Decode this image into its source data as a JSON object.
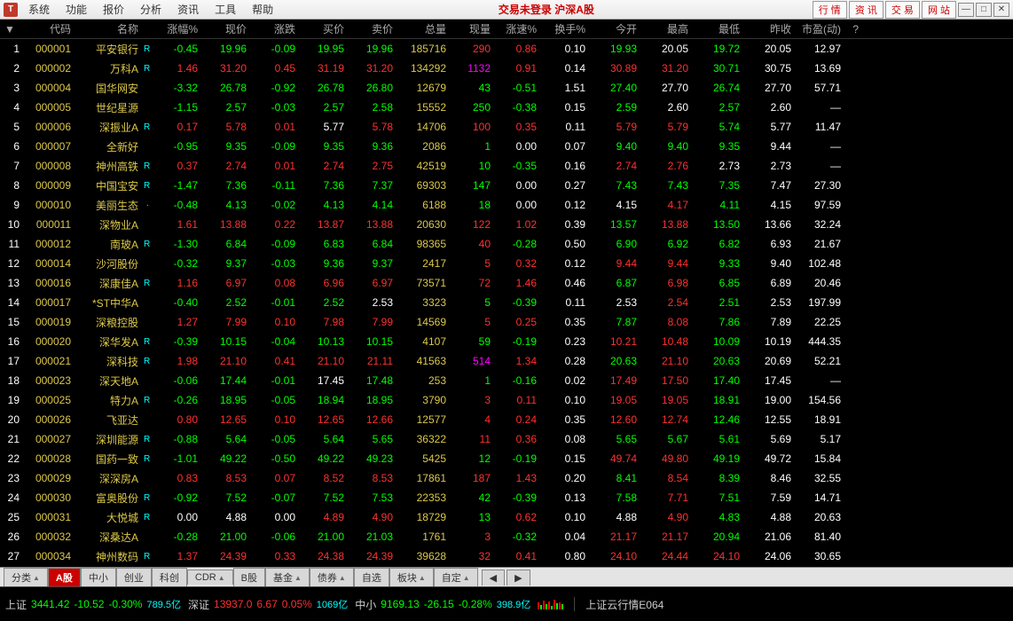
{
  "menubar": [
    "系统",
    "功能",
    "报价",
    "分析",
    "资讯",
    "工具",
    "帮助"
  ],
  "title_status": "交易未登录  沪深A股",
  "nav_buttons": [
    "行 情",
    "资 讯",
    "交 易",
    "网 站"
  ],
  "columns": [
    "",
    "代码",
    "名称",
    "",
    "涨幅%",
    "现价",
    "涨跌",
    "买价",
    "卖价",
    "总量",
    "现量",
    "涨速%",
    "换手%",
    "今开",
    "最高",
    "最低",
    "昨收",
    "市盈(动)",
    "?"
  ],
  "rows": [
    {
      "idx": "1",
      "code": "000001",
      "name": "平安银行",
      "r": "R",
      "pct": "-0.45",
      "price": "19.96",
      "chg": "-0.09",
      "bid": "19.95",
      "ask": "19.96",
      "vol": "185716",
      "cvol": "290",
      "cvolc": "cvol-red",
      "spd": "0.86",
      "turn": "0.10",
      "open": "19.93",
      "high": "20.05",
      "low": "19.72",
      "pclose": "20.05",
      "pe": "12.97",
      "dir": "down",
      "opencolor": "down",
      "highcolor": "flat",
      "lowcolor": "down"
    },
    {
      "idx": "2",
      "code": "000002",
      "name": "万科A",
      "r": "R",
      "pct": "1.46",
      "price": "31.20",
      "chg": "0.45",
      "bid": "31.19",
      "ask": "31.20",
      "vol": "134292",
      "cvol": "1132",
      "cvolc": "cvol-mag",
      "spd": "0.91",
      "turn": "0.14",
      "open": "30.89",
      "high": "31.20",
      "low": "30.71",
      "pclose": "30.75",
      "pe": "13.69",
      "dir": "up",
      "opencolor": "up",
      "highcolor": "up",
      "lowcolor": "down"
    },
    {
      "idx": "3",
      "code": "000004",
      "name": "国华网安",
      "r": "",
      "pct": "-3.32",
      "price": "26.78",
      "chg": "-0.92",
      "bid": "26.78",
      "ask": "26.80",
      "vol": "12679",
      "cvol": "43",
      "cvolc": "cvol-grn",
      "spd": "-0.51",
      "turn": "1.51",
      "open": "27.40",
      "high": "27.70",
      "low": "26.74",
      "pclose": "27.70",
      "pe": "57.71",
      "dir": "down",
      "opencolor": "down",
      "highcolor": "flat",
      "lowcolor": "down"
    },
    {
      "idx": "4",
      "code": "000005",
      "name": "世纪星源",
      "r": "",
      "pct": "-1.15",
      "price": "2.57",
      "chg": "-0.03",
      "bid": "2.57",
      "ask": "2.58",
      "vol": "15552",
      "cvol": "250",
      "cvolc": "cvol-grn",
      "spd": "-0.38",
      "turn": "0.15",
      "open": "2.59",
      "high": "2.60",
      "low": "2.57",
      "pclose": "2.60",
      "pe": "—",
      "dir": "down",
      "opencolor": "down",
      "highcolor": "flat",
      "lowcolor": "down"
    },
    {
      "idx": "5",
      "code": "000006",
      "name": "深振业A",
      "r": "R",
      "pct": "0.17",
      "price": "5.78",
      "chg": "0.01",
      "bid": "5.77",
      "ask": "5.78",
      "vol": "14706",
      "cvol": "100",
      "cvolc": "cvol-red",
      "spd": "0.35",
      "turn": "0.11",
      "open": "5.79",
      "high": "5.79",
      "low": "5.74",
      "pclose": "5.77",
      "pe": "11.47",
      "dir": "up",
      "bidcolor": "flat",
      "opencolor": "up",
      "highcolor": "up",
      "lowcolor": "down"
    },
    {
      "idx": "6",
      "code": "000007",
      "name": "全新好",
      "r": "",
      "pct": "-0.95",
      "price": "9.35",
      "chg": "-0.09",
      "bid": "9.35",
      "ask": "9.36",
      "vol": "2086",
      "cvol": "1",
      "cvolc": "cvol-grn",
      "spd": "0.00",
      "turn": "0.07",
      "open": "9.40",
      "high": "9.40",
      "low": "9.35",
      "pclose": "9.44",
      "pe": "—",
      "dir": "down",
      "opencolor": "down",
      "highcolor": "down",
      "lowcolor": "down"
    },
    {
      "idx": "7",
      "code": "000008",
      "name": "神州高铁",
      "r": "R",
      "pct": "0.37",
      "price": "2.74",
      "chg": "0.01",
      "bid": "2.74",
      "ask": "2.75",
      "vol": "42519",
      "cvol": "10",
      "cvolc": "cvol-grn",
      "spd": "-0.35",
      "turn": "0.16",
      "open": "2.74",
      "high": "2.76",
      "low": "2.73",
      "pclose": "2.73",
      "pe": "—",
      "dir": "up",
      "opencolor": "up",
      "highcolor": "up",
      "lowcolor": "flat"
    },
    {
      "idx": "8",
      "code": "000009",
      "name": "中国宝安",
      "r": "R",
      "pct": "-1.47",
      "price": "7.36",
      "chg": "-0.11",
      "bid": "7.36",
      "ask": "7.37",
      "vol": "69303",
      "cvol": "147",
      "cvolc": "cvol-grn",
      "spd": "0.00",
      "turn": "0.27",
      "open": "7.43",
      "high": "7.43",
      "low": "7.35",
      "pclose": "7.47",
      "pe": "27.30",
      "dir": "down",
      "opencolor": "down",
      "highcolor": "down",
      "lowcolor": "down"
    },
    {
      "idx": "9",
      "code": "000010",
      "name": "美丽生态",
      "r": "·",
      "pct": "-0.48",
      "price": "4.13",
      "chg": "-0.02",
      "bid": "4.13",
      "ask": "4.14",
      "vol": "6188",
      "cvol": "18",
      "cvolc": "cvol-grn",
      "spd": "0.00",
      "turn": "0.12",
      "open": "4.15",
      "high": "4.17",
      "low": "4.11",
      "pclose": "4.15",
      "pe": "97.59",
      "dir": "down",
      "opencolor": "flat",
      "highcolor": "up",
      "lowcolor": "down"
    },
    {
      "idx": "10",
      "code": "000011",
      "name": "深物业A",
      "r": "",
      "pct": "1.61",
      "price": "13.88",
      "chg": "0.22",
      "bid": "13.87",
      "ask": "13.88",
      "vol": "20630",
      "cvol": "122",
      "cvolc": "cvol-red",
      "spd": "1.02",
      "turn": "0.39",
      "open": "13.57",
      "high": "13.88",
      "low": "13.50",
      "pclose": "13.66",
      "pe": "32.24",
      "dir": "up",
      "opencolor": "down",
      "highcolor": "up",
      "lowcolor": "down"
    },
    {
      "idx": "11",
      "code": "000012",
      "name": "南玻A",
      "r": "R",
      "pct": "-1.30",
      "price": "6.84",
      "chg": "-0.09",
      "bid": "6.83",
      "ask": "6.84",
      "vol": "98365",
      "cvol": "40",
      "cvolc": "cvol-red",
      "spd": "-0.28",
      "turn": "0.50",
      "open": "6.90",
      "high": "6.92",
      "low": "6.82",
      "pclose": "6.93",
      "pe": "21.67",
      "dir": "down",
      "opencolor": "down",
      "highcolor": "down",
      "lowcolor": "down"
    },
    {
      "idx": "12",
      "code": "000014",
      "name": "沙河股份",
      "r": "",
      "pct": "-0.32",
      "price": "9.37",
      "chg": "-0.03",
      "bid": "9.36",
      "ask": "9.37",
      "vol": "2417",
      "cvol": "5",
      "cvolc": "cvol-red",
      "spd": "0.32",
      "turn": "0.12",
      "open": "9.44",
      "high": "9.44",
      "low": "9.33",
      "pclose": "9.40",
      "pe": "102.48",
      "dir": "down",
      "opencolor": "up",
      "highcolor": "up",
      "lowcolor": "down"
    },
    {
      "idx": "13",
      "code": "000016",
      "name": "深康佳A",
      "r": "R",
      "pct": "1.16",
      "price": "6.97",
      "chg": "0.08",
      "bid": "6.96",
      "ask": "6.97",
      "vol": "73571",
      "cvol": "72",
      "cvolc": "cvol-red",
      "spd": "1.46",
      "turn": "0.46",
      "open": "6.87",
      "high": "6.98",
      "low": "6.85",
      "pclose": "6.89",
      "pe": "20.46",
      "dir": "up",
      "opencolor": "down",
      "highcolor": "up",
      "lowcolor": "down"
    },
    {
      "idx": "14",
      "code": "000017",
      "name": "*ST中华A",
      "r": "",
      "pct": "-0.40",
      "price": "2.52",
      "chg": "-0.01",
      "bid": "2.52",
      "ask": "2.53",
      "vol": "3323",
      "cvol": "5",
      "cvolc": "cvol-grn",
      "spd": "-0.39",
      "turn": "0.11",
      "open": "2.53",
      "high": "2.54",
      "low": "2.51",
      "pclose": "2.53",
      "pe": "197.99",
      "dir": "down",
      "askcolor": "flat",
      "opencolor": "flat",
      "highcolor": "up",
      "lowcolor": "down"
    },
    {
      "idx": "15",
      "code": "000019",
      "name": "深粮控股",
      "r": "",
      "pct": "1.27",
      "price": "7.99",
      "chg": "0.10",
      "bid": "7.98",
      "ask": "7.99",
      "vol": "14569",
      "cvol": "5",
      "cvolc": "cvol-red",
      "spd": "0.25",
      "turn": "0.35",
      "open": "7.87",
      "high": "8.08",
      "low": "7.86",
      "pclose": "7.89",
      "pe": "22.25",
      "dir": "up",
      "opencolor": "down",
      "highcolor": "up",
      "lowcolor": "down"
    },
    {
      "idx": "16",
      "code": "000020",
      "name": "深华发A",
      "r": "R",
      "pct": "-0.39",
      "price": "10.15",
      "chg": "-0.04",
      "bid": "10.13",
      "ask": "10.15",
      "vol": "4107",
      "cvol": "59",
      "cvolc": "cvol-grn",
      "spd": "-0.19",
      "turn": "0.23",
      "open": "10.21",
      "high": "10.48",
      "low": "10.09",
      "pclose": "10.19",
      "pe": "444.35",
      "dir": "down",
      "opencolor": "up",
      "highcolor": "up",
      "lowcolor": "down"
    },
    {
      "idx": "17",
      "code": "000021",
      "name": "深科技",
      "r": "R",
      "pct": "1.98",
      "price": "21.10",
      "chg": "0.41",
      "bid": "21.10",
      "ask": "21.11",
      "vol": "41563",
      "cvol": "514",
      "cvolc": "cvol-mag",
      "spd": "1.34",
      "turn": "0.28",
      "open": "20.63",
      "high": "21.10",
      "low": "20.63",
      "pclose": "20.69",
      "pe": "52.21",
      "dir": "up",
      "opencolor": "down",
      "highcolor": "up",
      "lowcolor": "down"
    },
    {
      "idx": "18",
      "code": "000023",
      "name": "深天地A",
      "r": "",
      "pct": "-0.06",
      "price": "17.44",
      "chg": "-0.01",
      "bid": "17.45",
      "ask": "17.48",
      "vol": "253",
      "cvol": "1",
      "cvolc": "cvol-grn",
      "spd": "-0.16",
      "turn": "0.02",
      "open": "17.49",
      "high": "17.50",
      "low": "17.40",
      "pclose": "17.45",
      "pe": "—",
      "dir": "down",
      "bidcolor": "flat",
      "opencolor": "up",
      "highcolor": "up",
      "lowcolor": "down"
    },
    {
      "idx": "19",
      "code": "000025",
      "name": "特力A",
      "r": "R",
      "pct": "-0.26",
      "price": "18.95",
      "chg": "-0.05",
      "bid": "18.94",
      "ask": "18.95",
      "vol": "3790",
      "cvol": "3",
      "cvolc": "cvol-red",
      "spd": "0.11",
      "turn": "0.10",
      "open": "19.05",
      "high": "19.05",
      "low": "18.91",
      "pclose": "19.00",
      "pe": "154.56",
      "dir": "down",
      "opencolor": "up",
      "highcolor": "up",
      "lowcolor": "down"
    },
    {
      "idx": "20",
      "code": "000026",
      "name": "飞亚达",
      "r": "",
      "pct": "0.80",
      "price": "12.65",
      "chg": "0.10",
      "bid": "12.65",
      "ask": "12.66",
      "vol": "12577",
      "cvol": "4",
      "cvolc": "cvol-red",
      "spd": "0.24",
      "turn": "0.35",
      "open": "12.60",
      "high": "12.74",
      "low": "12.46",
      "pclose": "12.55",
      "pe": "18.91",
      "dir": "up",
      "opencolor": "up",
      "highcolor": "up",
      "lowcolor": "down"
    },
    {
      "idx": "21",
      "code": "000027",
      "name": "深圳能源",
      "r": "R",
      "pct": "-0.88",
      "price": "5.64",
      "chg": "-0.05",
      "bid": "5.64",
      "ask": "5.65",
      "vol": "36322",
      "cvol": "11",
      "cvolc": "cvol-red",
      "spd": "0.36",
      "turn": "0.08",
      "open": "5.65",
      "high": "5.67",
      "low": "5.61",
      "pclose": "5.69",
      "pe": "5.17",
      "dir": "down",
      "opencolor": "down",
      "highcolor": "down",
      "lowcolor": "down"
    },
    {
      "idx": "22",
      "code": "000028",
      "name": "国药一致",
      "r": "R",
      "pct": "-1.01",
      "price": "49.22",
      "chg": "-0.50",
      "bid": "49.22",
      "ask": "49.23",
      "vol": "5425",
      "cvol": "12",
      "cvolc": "cvol-grn",
      "spd": "-0.19",
      "turn": "0.15",
      "open": "49.74",
      "high": "49.80",
      "low": "49.19",
      "pclose": "49.72",
      "pe": "15.84",
      "dir": "down",
      "opencolor": "up",
      "highcolor": "up",
      "lowcolor": "down"
    },
    {
      "idx": "23",
      "code": "000029",
      "name": "深深房A",
      "r": "",
      "pct": "0.83",
      "price": "8.53",
      "chg": "0.07",
      "bid": "8.52",
      "ask": "8.53",
      "vol": "17861",
      "cvol": "187",
      "cvolc": "cvol-red",
      "spd": "1.43",
      "turn": "0.20",
      "open": "8.41",
      "high": "8.54",
      "low": "8.39",
      "pclose": "8.46",
      "pe": "32.55",
      "dir": "up",
      "opencolor": "down",
      "highcolor": "up",
      "lowcolor": "down"
    },
    {
      "idx": "24",
      "code": "000030",
      "name": "富奥股份",
      "r": "R",
      "pct": "-0.92",
      "price": "7.52",
      "chg": "-0.07",
      "bid": "7.52",
      "ask": "7.53",
      "vol": "22353",
      "cvol": "42",
      "cvolc": "cvol-grn",
      "spd": "-0.39",
      "turn": "0.13",
      "open": "7.58",
      "high": "7.71",
      "low": "7.51",
      "pclose": "7.59",
      "pe": "14.71",
      "dir": "down",
      "opencolor": "down",
      "highcolor": "up",
      "lowcolor": "down"
    },
    {
      "idx": "25",
      "code": "000031",
      "name": "大悦城",
      "r": "R",
      "pct": "0.00",
      "price": "4.88",
      "chg": "0.00",
      "bid": "4.89",
      "ask": "4.90",
      "vol": "18729",
      "cvol": "13",
      "cvolc": "cvol-grn",
      "spd": "0.62",
      "turn": "0.10",
      "open": "4.88",
      "high": "4.90",
      "low": "4.83",
      "pclose": "4.88",
      "pe": "20.63",
      "dir": "flat",
      "bidcolor": "up",
      "askcolor": "up",
      "opencolor": "flat",
      "highcolor": "up",
      "lowcolor": "down"
    },
    {
      "idx": "26",
      "code": "000032",
      "name": "深桑达A",
      "r": "",
      "pct": "-0.28",
      "price": "21.00",
      "chg": "-0.06",
      "bid": "21.00",
      "ask": "21.03",
      "vol": "1761",
      "cvol": "3",
      "cvolc": "cvol-red",
      "spd": "-0.32",
      "turn": "0.04",
      "open": "21.17",
      "high": "21.17",
      "low": "20.94",
      "pclose": "21.06",
      "pe": "81.40",
      "dir": "down",
      "opencolor": "up",
      "highcolor": "up",
      "lowcolor": "down"
    },
    {
      "idx": "27",
      "code": "000034",
      "name": "神州数码",
      "r": "R",
      "pct": "1.37",
      "price": "24.39",
      "chg": "0.33",
      "bid": "24.38",
      "ask": "24.39",
      "vol": "39628",
      "cvol": "32",
      "cvolc": "cvol-red",
      "spd": "0.41",
      "turn": "0.80",
      "open": "24.10",
      "high": "24.44",
      "low": "24.10",
      "pclose": "24.06",
      "pe": "30.65",
      "dir": "up",
      "opencolor": "up",
      "highcolor": "up",
      "lowcolor": "up"
    }
  ],
  "tabs": [
    {
      "label": "分类",
      "tri": true,
      "active": false
    },
    {
      "label": "A股",
      "tri": false,
      "active": true
    },
    {
      "label": "中小",
      "tri": false,
      "active": false
    },
    {
      "label": "创业",
      "tri": false,
      "active": false
    },
    {
      "label": "科创",
      "tri": false,
      "active": false
    },
    {
      "label": "CDR",
      "tri": true,
      "active": false
    },
    {
      "label": "B股",
      "tri": false,
      "active": false
    },
    {
      "label": "基金",
      "tri": true,
      "active": false
    },
    {
      "label": "债券",
      "tri": true,
      "active": false
    },
    {
      "label": "自选",
      "tri": false,
      "active": false
    },
    {
      "label": "板块",
      "tri": true,
      "active": false
    },
    {
      "label": "自定",
      "tri": true,
      "active": false
    }
  ],
  "status": {
    "sh": {
      "label": "上证",
      "val": "3441.42",
      "chg": "-10.52",
      "pct": "-0.30%",
      "amt": "789.5亿",
      "dir": "down"
    },
    "sz": {
      "label": "深证",
      "val": "13937.0",
      "chg": "6.67",
      "pct": "0.05%",
      "amt": "1069亿",
      "dir": "up"
    },
    "zx": {
      "label": "中小",
      "val": "9169.13",
      "chg": "-26.15",
      "pct": "-0.28%",
      "amt": "398.9亿",
      "dir": "down"
    },
    "right": "上证云行情E064"
  }
}
